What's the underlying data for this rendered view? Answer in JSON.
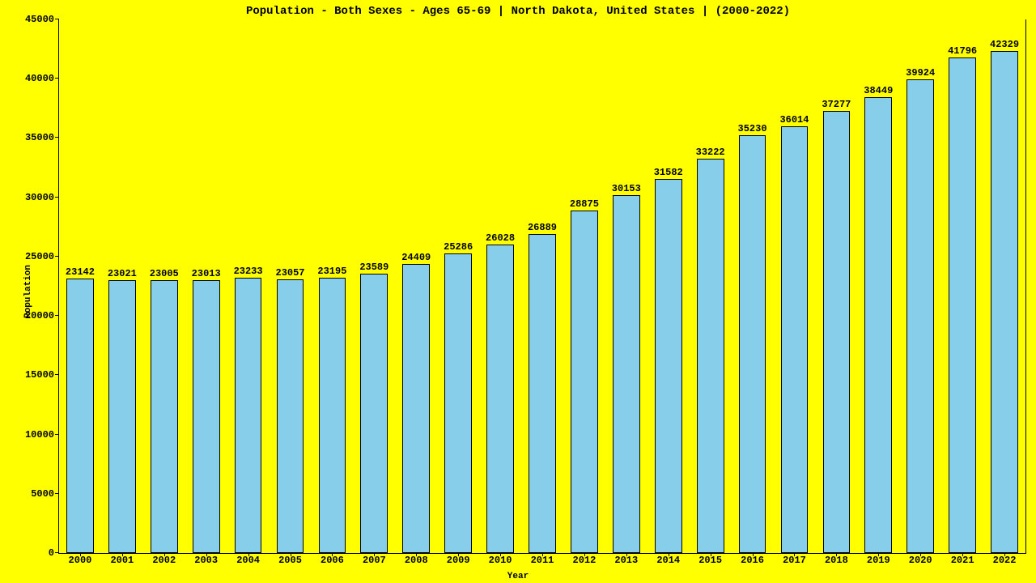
{
  "chart": {
    "type": "bar",
    "title": "Population - Both Sexes - Ages 65-69 | North Dakota, United States |  (2000-2022)",
    "title_fontsize": 14,
    "xlabel": "Year",
    "ylabel": "Population",
    "label_fontsize": 11,
    "tick_fontsize": 12,
    "value_label_fontsize": 12,
    "background_color": "#ffff00",
    "bar_color": "#87ceeb",
    "bar_edge_color": "#000000",
    "axis_color": "#000000",
    "ylim": [
      0,
      45000
    ],
    "ytick_step": 5000,
    "yticks": [
      0,
      5000,
      10000,
      15000,
      20000,
      25000,
      30000,
      35000,
      40000,
      45000
    ],
    "bar_width": 0.65,
    "categories": [
      "2000",
      "2001",
      "2002",
      "2003",
      "2004",
      "2005",
      "2006",
      "2007",
      "2008",
      "2009",
      "2010",
      "2011",
      "2012",
      "2013",
      "2014",
      "2015",
      "2016",
      "2017",
      "2018",
      "2019",
      "2020",
      "2021",
      "2022"
    ],
    "values": [
      23142,
      23021,
      23005,
      23013,
      23233,
      23057,
      23195,
      23589,
      24409,
      25286,
      26028,
      26889,
      28875,
      30153,
      31582,
      33222,
      35230,
      36014,
      37277,
      38449,
      39924,
      41796,
      42329
    ]
  }
}
